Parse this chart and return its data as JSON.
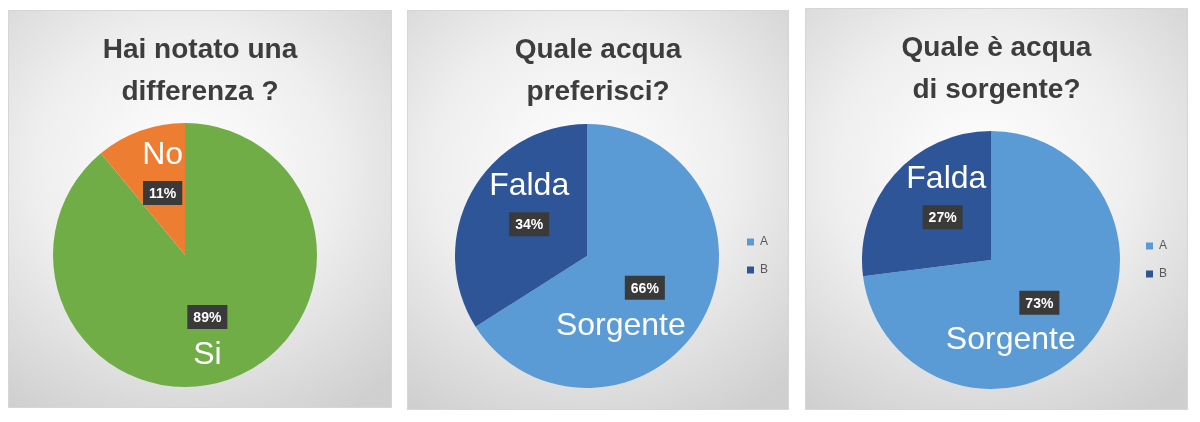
{
  "chart_data": [
    {
      "type": "pie",
      "title": "Hai notato una differenza ?",
      "categories": [
        "Si",
        "No"
      ],
      "values": [
        89,
        11
      ],
      "colors": [
        "#70ad47",
        "#ed7d31"
      ],
      "value_labels": [
        "89%",
        "11%"
      ]
    },
    {
      "type": "pie",
      "title": "Quale acqua preferisci?",
      "categories": [
        "A",
        "B"
      ],
      "values": [
        66,
        34
      ],
      "colors": [
        "#5b9bd5",
        "#2e5597"
      ],
      "value_labels": [
        "66%",
        "34%"
      ],
      "legend": "right",
      "annotations": [
        {
          "text": "Sorgente",
          "x": "A"
        },
        {
          "text": "Falda",
          "x": "B"
        }
      ]
    },
    {
      "type": "pie",
      "title": "Quale è acqua di sorgente?",
      "categories": [
        "A",
        "B"
      ],
      "values": [
        73,
        27
      ],
      "colors": [
        "#5b9bd5",
        "#2e5597"
      ],
      "value_labels": [
        "73%",
        "27%"
      ],
      "legend": "right",
      "annotations": [
        {
          "text": "Sorgente",
          "x": "A"
        },
        {
          "text": "Falda",
          "x": "B"
        }
      ]
    }
  ]
}
